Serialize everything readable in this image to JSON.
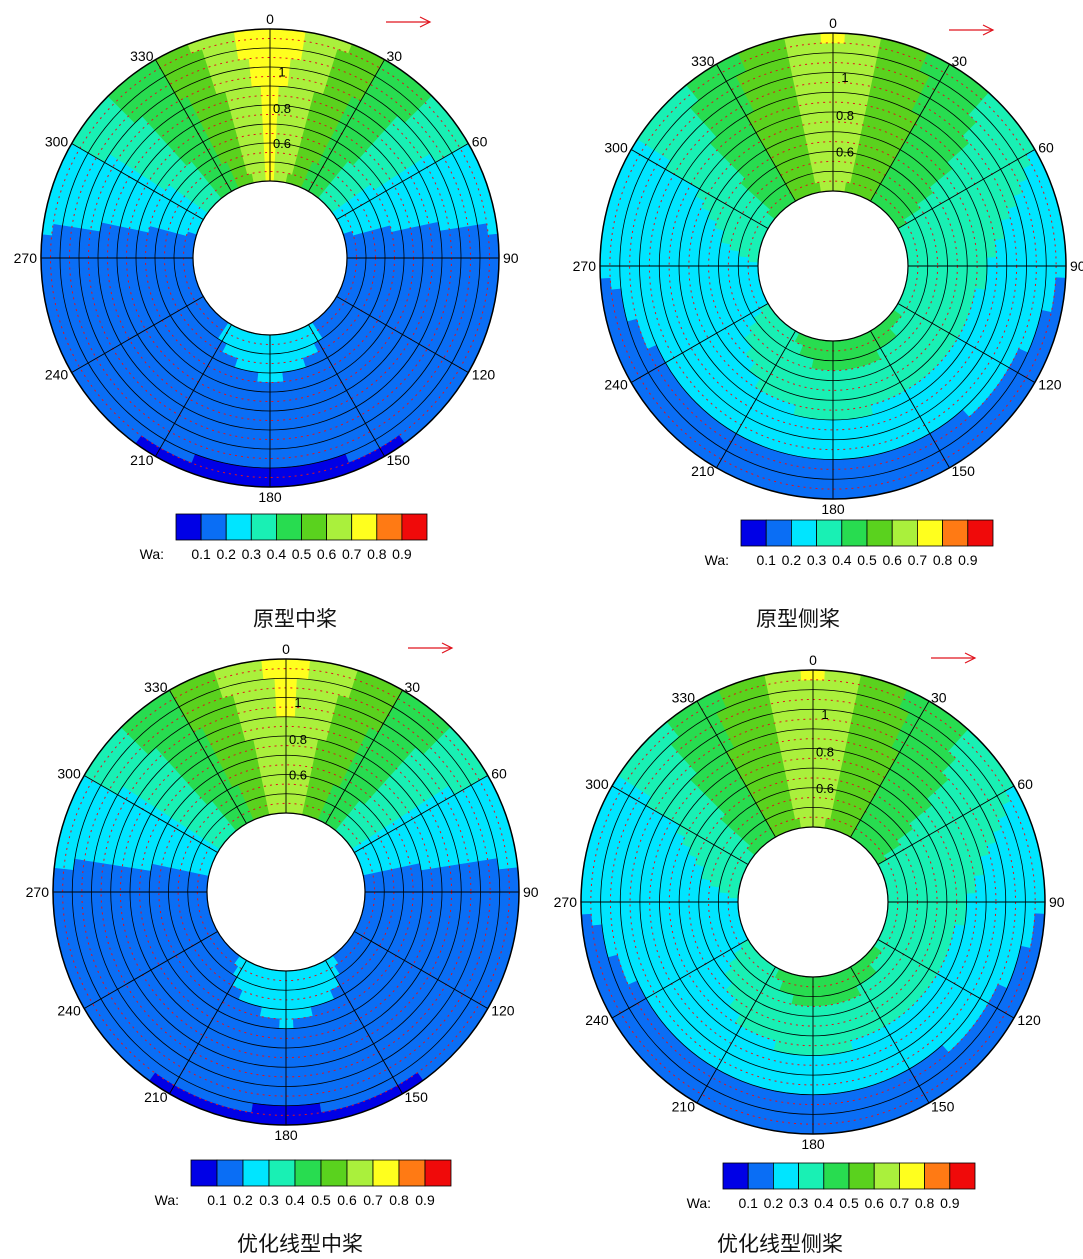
{
  "colorbar": {
    "label": "Wa:",
    "tick_labels": [
      "0.1",
      "0.2",
      "0.3",
      "0.4",
      "0.5",
      "0.6",
      "0.7",
      "0.8",
      "0.9"
    ],
    "colors": [
      "#0000e6",
      "#0a6ef5",
      "#00e5ff",
      "#19f0b4",
      "#28dc50",
      "#5ad21e",
      "#aaf03c",
      "#ffff1e",
      "#ff7a14",
      "#f00a0a"
    ]
  },
  "chart_data": [
    {
      "type": "heatmap",
      "title": "原型中桨",
      "angle_labels": [
        "0",
        "30",
        "60",
        "90",
        "120",
        "150",
        "180",
        "210",
        "240",
        "270",
        "300",
        "330"
      ],
      "radial_labels": [
        "0.6",
        "0.8",
        "1"
      ],
      "zero_angle": "top",
      "direction": "clockwise",
      "colorbar_label": "Wa:",
      "series": [
        {
          "name": "r=0.6",
          "angles": [
            0,
            30,
            60,
            90,
            120,
            150,
            180,
            210,
            240,
            270,
            300,
            330
          ],
          "values": [
            0.72,
            0.45,
            0.25,
            0.13,
            0.1,
            0.22,
            0.25,
            0.22,
            0.1,
            0.13,
            0.25,
            0.45
          ]
        },
        {
          "name": "r=0.8",
          "angles": [
            0,
            30,
            60,
            90,
            120,
            150,
            180,
            210,
            240,
            270,
            300,
            330
          ],
          "values": [
            0.72,
            0.48,
            0.28,
            0.15,
            0.13,
            0.15,
            0.17,
            0.15,
            0.13,
            0.15,
            0.28,
            0.48
          ]
        },
        {
          "name": "r=1.0",
          "angles": [
            0,
            30,
            60,
            90,
            120,
            150,
            180,
            210,
            240,
            270,
            300,
            330
          ],
          "values": [
            0.8,
            0.5,
            0.3,
            0.17,
            0.12,
            0.09,
            0.08,
            0.09,
            0.12,
            0.17,
            0.3,
            0.5
          ]
        }
      ]
    },
    {
      "type": "heatmap",
      "title": "原型侧桨",
      "angle_labels": [
        "0",
        "30",
        "60",
        "90",
        "120",
        "150",
        "180",
        "210",
        "240",
        "270",
        "300",
        "330"
      ],
      "radial_labels": [
        "0.6",
        "0.8",
        "1"
      ],
      "zero_angle": "top",
      "direction": "clockwise",
      "colorbar_label": "Wa:",
      "series": [
        {
          "name": "r=0.6",
          "angles": [
            0,
            30,
            60,
            90,
            120,
            150,
            180,
            210,
            240,
            270,
            300,
            330
          ],
          "values": [
            0.65,
            0.5,
            0.4,
            0.4,
            0.4,
            0.45,
            0.48,
            0.4,
            0.3,
            0.3,
            0.35,
            0.5
          ]
        },
        {
          "name": "r=0.8",
          "angles": [
            0,
            30,
            60,
            90,
            120,
            150,
            180,
            210,
            240,
            270,
            300,
            330
          ],
          "values": [
            0.68,
            0.5,
            0.35,
            0.3,
            0.28,
            0.28,
            0.3,
            0.28,
            0.25,
            0.25,
            0.3,
            0.5
          ]
        },
        {
          "name": "r=1.0",
          "angles": [
            0,
            30,
            60,
            90,
            120,
            150,
            180,
            210,
            240,
            270,
            300,
            330
          ],
          "values": [
            0.72,
            0.45,
            0.3,
            0.2,
            0.15,
            0.13,
            0.11,
            0.13,
            0.15,
            0.2,
            0.28,
            0.45
          ]
        }
      ]
    },
    {
      "type": "heatmap",
      "title": "优化线型中桨",
      "angle_labels": [
        "0",
        "30",
        "60",
        "90",
        "120",
        "150",
        "180",
        "210",
        "240",
        "270",
        "300",
        "330"
      ],
      "radial_labels": [
        "0.6",
        "0.8",
        "1"
      ],
      "zero_angle": "top",
      "direction": "clockwise",
      "colorbar_label": "Wa:",
      "series": [
        {
          "name": "r=0.6",
          "angles": [
            0,
            30,
            60,
            90,
            120,
            150,
            180,
            210,
            240,
            270,
            300,
            330
          ],
          "values": [
            0.68,
            0.45,
            0.28,
            0.15,
            0.12,
            0.22,
            0.25,
            0.22,
            0.12,
            0.15,
            0.28,
            0.45
          ]
        },
        {
          "name": "r=0.8",
          "angles": [
            0,
            30,
            60,
            90,
            120,
            150,
            180,
            210,
            240,
            270,
            300,
            330
          ],
          "values": [
            0.7,
            0.48,
            0.28,
            0.16,
            0.13,
            0.16,
            0.18,
            0.16,
            0.13,
            0.16,
            0.28,
            0.48
          ]
        },
        {
          "name": "r=1.0",
          "angles": [
            0,
            30,
            60,
            90,
            120,
            150,
            180,
            210,
            240,
            270,
            300,
            330
          ],
          "values": [
            0.75,
            0.5,
            0.3,
            0.17,
            0.12,
            0.09,
            0.08,
            0.09,
            0.12,
            0.17,
            0.3,
            0.5
          ]
        }
      ]
    },
    {
      "type": "heatmap",
      "title": "优化线型侧桨",
      "angle_labels": [
        "0",
        "30",
        "60",
        "90",
        "120",
        "150",
        "180",
        "210",
        "240",
        "270",
        "300",
        "330"
      ],
      "radial_labels": [
        "0.6",
        "0.8",
        "1"
      ],
      "zero_angle": "top",
      "direction": "clockwise",
      "colorbar_label": "Wa:",
      "series": [
        {
          "name": "r=0.6",
          "angles": [
            0,
            30,
            60,
            90,
            120,
            150,
            180,
            210,
            240,
            270,
            300,
            330
          ],
          "values": [
            0.65,
            0.5,
            0.4,
            0.4,
            0.4,
            0.45,
            0.48,
            0.4,
            0.3,
            0.3,
            0.35,
            0.5
          ]
        },
        {
          "name": "r=0.8",
          "angles": [
            0,
            30,
            60,
            90,
            120,
            150,
            180,
            210,
            240,
            270,
            300,
            330
          ],
          "values": [
            0.68,
            0.5,
            0.35,
            0.3,
            0.28,
            0.28,
            0.3,
            0.28,
            0.25,
            0.25,
            0.3,
            0.5
          ]
        },
        {
          "name": "r=1.0",
          "angles": [
            0,
            30,
            60,
            90,
            120,
            150,
            180,
            210,
            240,
            270,
            300,
            330
          ],
          "values": [
            0.72,
            0.45,
            0.3,
            0.2,
            0.15,
            0.13,
            0.11,
            0.13,
            0.15,
            0.2,
            0.28,
            0.45
          ]
        }
      ]
    }
  ]
}
